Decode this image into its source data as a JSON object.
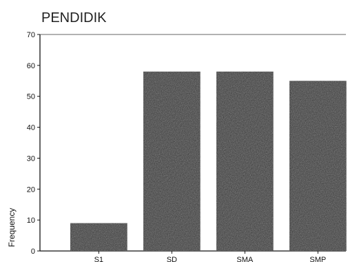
{
  "chart_data": {
    "type": "bar",
    "title": "PENDIDIK",
    "xlabel": "",
    "ylabel": "Frequency",
    "categories": [
      "S1",
      "SD",
      "SMA",
      "SMP"
    ],
    "values": [
      9,
      58,
      58,
      55
    ],
    "ylim": [
      0,
      70
    ],
    "yticks": [
      0,
      10,
      20,
      30,
      40,
      50,
      60,
      70
    ],
    "grid": false,
    "bar_color": "#2b2b2b"
  }
}
